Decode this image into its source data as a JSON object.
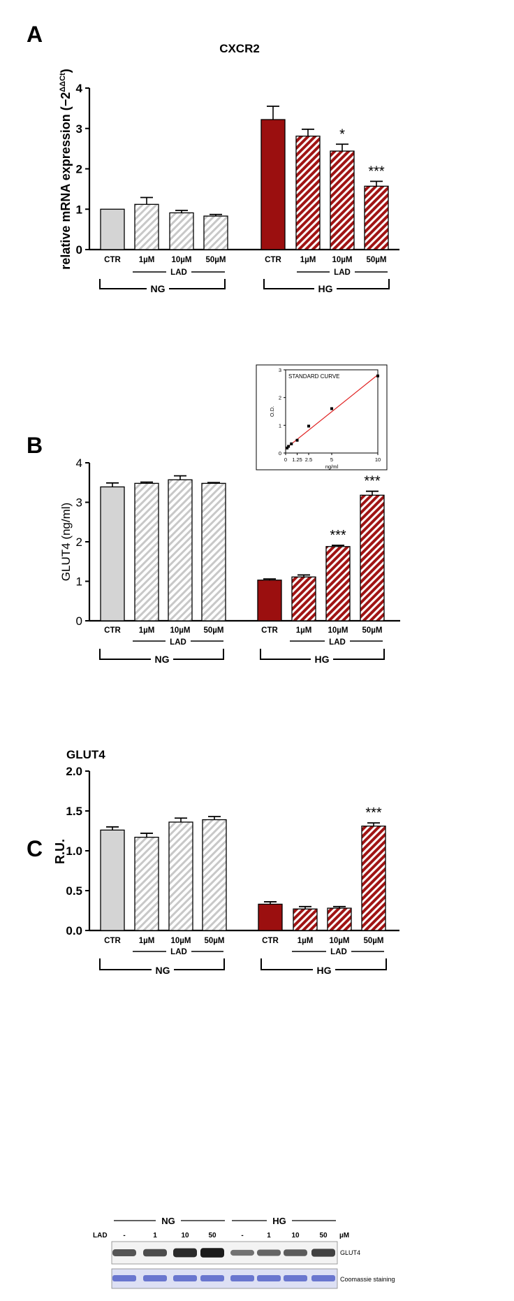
{
  "panels": {
    "A": {
      "letter": "A"
    },
    "B": {
      "letter": "B"
    },
    "C": {
      "letter": "C"
    }
  },
  "colors": {
    "ctr_ng": "#d4d4d4",
    "lad_ng_hatch": "#c8c8c8",
    "ctr_hg": "#9b0f0f",
    "lad_hg_fill": "#a01414",
    "inset_line": "#e02020",
    "blot_band": "#141414",
    "coomassie": "#5563c8"
  },
  "chart_data": [
    {
      "id": "A",
      "type": "bar",
      "title": "CXCR2",
      "ylabel": "relative mRNA expression (−2",
      "ylabel_sup": "ΔΔCt",
      "ylabel_close": ")",
      "ylim": [
        0,
        4
      ],
      "yticks": [
        "0",
        "1",
        "2",
        "3",
        "4"
      ],
      "tick_font_bold": true,
      "categories": [
        "CTR",
        "1µM",
        "10µM",
        "50µM",
        "CTR",
        "1µM",
        "10µM",
        "50µM"
      ],
      "values": [
        1.0,
        1.12,
        0.91,
        0.83,
        3.22,
        2.81,
        2.44,
        1.57
      ],
      "errors": [
        0.0,
        0.17,
        0.06,
        0.04,
        0.33,
        0.17,
        0.17,
        0.12
      ],
      "significance": [
        "",
        "",
        "",
        "",
        "",
        "",
        "*",
        "***"
      ],
      "treatment_label": "LAD",
      "groups": [
        "NG",
        "HG"
      ],
      "grid": false,
      "legend": "none"
    },
    {
      "id": "B",
      "type": "bar",
      "title": "",
      "ylabel": "GLUT4 (ng/ml)",
      "ylim": [
        0,
        4
      ],
      "yticks": [
        "0",
        "1",
        "2",
        "3",
        "4"
      ],
      "tick_font_bold": false,
      "categories": [
        "CTR",
        "1µM",
        "10µM",
        "50µM",
        "CTR",
        "1µM",
        "10µM",
        "50µM"
      ],
      "values": [
        3.39,
        3.48,
        3.57,
        3.48,
        1.03,
        1.11,
        1.88,
        3.18
      ],
      "errors": [
        0.1,
        0.03,
        0.1,
        0.02,
        0.03,
        0.05,
        0.03,
        0.1
      ],
      "significance": [
        "",
        "",
        "",
        "",
        "",
        "",
        "***",
        "***"
      ],
      "treatment_label": "LAD",
      "groups": [
        "NG",
        "HG"
      ],
      "grid": false,
      "legend": "none",
      "inset": {
        "type": "scatter",
        "title": "STANDARD CURVE",
        "xlabel": "ng/ml",
        "ylabel": "O.D.",
        "xlim": [
          0,
          10
        ],
        "ylim": [
          0,
          3
        ],
        "xticks": [
          "0",
          "1.25",
          "2.5",
          "5",
          "10"
        ],
        "yticks": [
          "0",
          "1",
          "2",
          "3"
        ],
        "x": [
          0.16,
          0.31,
          0.625,
          1.25,
          2.5,
          5,
          10
        ],
        "y": [
          0.18,
          0.24,
          0.33,
          0.46,
          0.97,
          1.6,
          2.78
        ],
        "fit": [
          [
            0,
            0.16
          ],
          [
            10,
            2.82
          ]
        ]
      }
    },
    {
      "id": "C",
      "type": "bar",
      "title": "GLUT4",
      "ylabel": "R.U.",
      "ylim": [
        0,
        2.0
      ],
      "yticks": [
        "0.0",
        "0.5",
        "1.0",
        "1.5",
        "2.0"
      ],
      "tick_font_bold": true,
      "categories": [
        "CTR",
        "1µM",
        "10µM",
        "50µM",
        "CTR",
        "1µM",
        "10µM",
        "50µM"
      ],
      "values": [
        1.26,
        1.17,
        1.36,
        1.39,
        0.33,
        0.27,
        0.28,
        1.31
      ],
      "errors": [
        0.04,
        0.05,
        0.05,
        0.04,
        0.03,
        0.03,
        0.02,
        0.04
      ],
      "significance": [
        "",
        "",
        "",
        "",
        "",
        "",
        "",
        "***"
      ],
      "treatment_label": "LAD",
      "groups": [
        "NG",
        "HG"
      ],
      "grid": false,
      "legend": "none"
    }
  ],
  "blot": {
    "groups": [
      "NG",
      "HG"
    ],
    "row_label": "LAD",
    "lanes": [
      "-",
      "1",
      "10",
      "50",
      "-",
      "1",
      "10",
      "50"
    ],
    "unit": "µM",
    "band_labels": [
      "GLUT4",
      "Coomassie staining"
    ],
    "band_intensity": [
      0.55,
      0.62,
      0.85,
      0.95,
      0.35,
      0.45,
      0.5,
      0.7
    ]
  }
}
